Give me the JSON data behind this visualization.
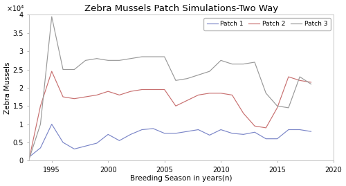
{
  "title": "Zebra Mussels Patch Simulations-Two Way",
  "xlabel": "Breeding Season in years(n)",
  "ylabel": "Zebra Mussels",
  "legend_labels": [
    "Patch 1",
    "Patch 2",
    "Patch 3"
  ],
  "years": [
    1993,
    1994,
    1995,
    1996,
    1997,
    1998,
    1999,
    2000,
    2001,
    2002,
    2003,
    2004,
    2005,
    2006,
    2007,
    2008,
    2009,
    2010,
    2011,
    2012,
    2013,
    2014,
    2015,
    2016,
    2017,
    2018
  ],
  "patch1": [
    1000,
    3500,
    10000,
    5000,
    3200,
    4000,
    4800,
    7200,
    5500,
    7200,
    8500,
    8800,
    7500,
    7500,
    8000,
    8500,
    7000,
    8500,
    7500,
    7200,
    7800,
    6000,
    6000,
    8500,
    8500,
    8000
  ],
  "patch2": [
    500,
    15000,
    24500,
    17500,
    17000,
    17500,
    18000,
    19000,
    18000,
    19000,
    19500,
    19500,
    19500,
    15000,
    16500,
    18000,
    18500,
    18500,
    18000,
    13000,
    9500,
    9000,
    14500,
    23000,
    22000,
    21500
  ],
  "patch3": [
    500,
    10000,
    39500,
    25000,
    25000,
    27500,
    28000,
    27500,
    27500,
    28000,
    28500,
    28500,
    28500,
    22000,
    22500,
    23500,
    24500,
    27500,
    26500,
    26500,
    27000,
    18500,
    15000,
    14500,
    23000,
    21000
  ],
  "patch1_color": "#7b86c8",
  "patch2_color": "#c87070",
  "patch3_color": "#999999",
  "ylim": [
    0,
    40000
  ],
  "xlim": [
    1993,
    2019
  ],
  "ytick_vals": [
    0,
    5000,
    10000,
    15000,
    20000,
    25000,
    30000,
    35000,
    40000
  ],
  "ytick_labels": [
    "0",
    "0.5",
    "1",
    "1.5",
    "2",
    "2.5",
    "3",
    "3.5",
    "4"
  ],
  "xticks": [
    1995,
    2000,
    2005,
    2010,
    2015,
    2020
  ],
  "background_color": "#ffffff",
  "title_fontsize": 9.5,
  "axis_fontsize": 7.5,
  "tick_fontsize": 7,
  "legend_fontsize": 6.5,
  "linewidth": 0.85,
  "exponent_label": "×10⁴"
}
